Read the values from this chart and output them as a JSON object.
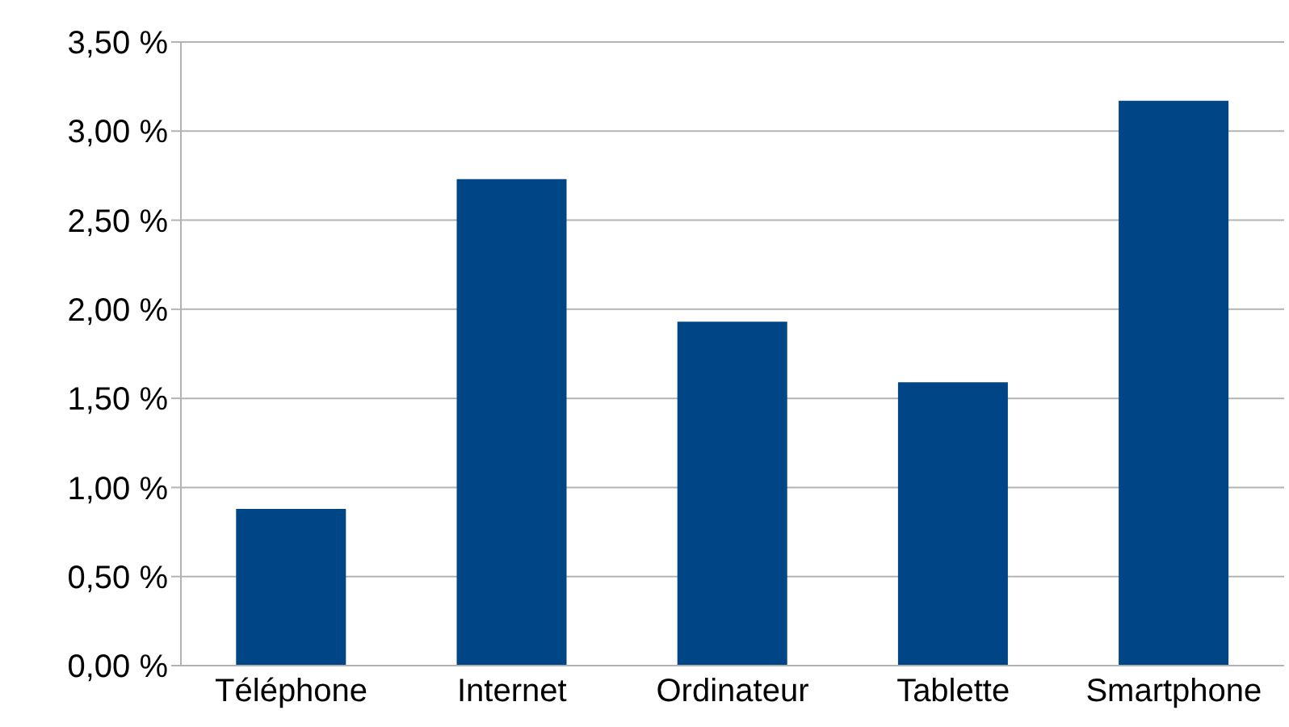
{
  "chart_data": {
    "type": "bar",
    "categories": [
      "Téléphone",
      "Internet",
      "Ordinateur",
      "Tablette",
      "Smartphone"
    ],
    "values": [
      0.88,
      2.73,
      1.93,
      1.59,
      3.17
    ],
    "color": "#004586",
    "ylim": [
      0,
      3.5
    ],
    "yticks": [
      {
        "value": 0,
        "label": "0,00 %"
      },
      {
        "value": 0.5,
        "label": "0,50 %"
      },
      {
        "value": 1,
        "label": "1,00 %"
      },
      {
        "value": 1.5,
        "label": "1,50 %"
      },
      {
        "value": 2,
        "label": "2,00 %"
      },
      {
        "value": 2.5,
        "label": "2,50 %"
      },
      {
        "value": 3,
        "label": "3,00 %"
      },
      {
        "value": 3.5,
        "label": "3,50 %"
      }
    ],
    "grid": "y",
    "legend": false
  }
}
